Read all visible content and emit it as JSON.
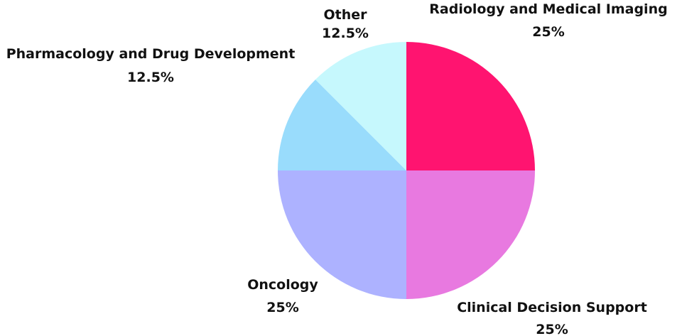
{
  "chart_data": {
    "type": "pie",
    "title": "",
    "start_angle_deg": 0,
    "direction": "clockwise",
    "slices": [
      {
        "label": "Radiology and Medical Imaging",
        "value": 25,
        "value_label": "25%",
        "color": "#ff1470"
      },
      {
        "label": "Clinical Decision Support",
        "value": 25,
        "value_label": "25%",
        "color": "#e879e0"
      },
      {
        "label": "Oncology",
        "value": 25,
        "value_label": "25%",
        "color": "#adb2ff"
      },
      {
        "label": "Pharmacology and Drug Development",
        "value": 12.5,
        "value_label": "12.5%",
        "color": "#99dcfc"
      },
      {
        "label": "Other",
        "value": 12.5,
        "value_label": "12.5%",
        "color": "#c6f8fd"
      }
    ]
  }
}
